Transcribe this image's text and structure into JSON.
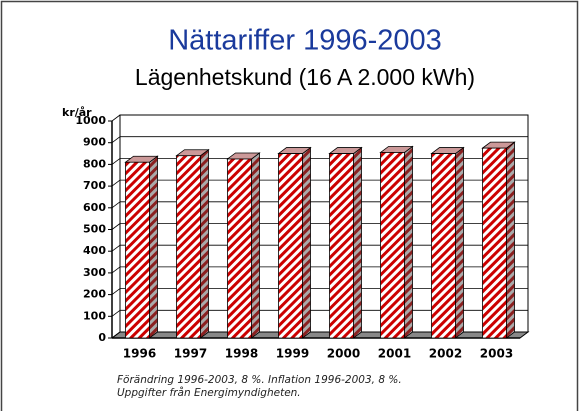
{
  "chart_data": {
    "type": "bar",
    "title": "Nättariffer 1996-2003",
    "subtitle": "Lägenhetskund (16 A 2.000 kWh)",
    "y_label": "kr/år",
    "categories": [
      "1996",
      "1997",
      "1998",
      "1999",
      "2000",
      "2001",
      "2002",
      "2003"
    ],
    "values": [
      810,
      840,
      825,
      850,
      850,
      855,
      850,
      875
    ],
    "color": "#cc0000",
    "ylim": [
      0,
      1000
    ],
    "yticks": [
      0,
      100,
      200,
      300,
      400,
      500,
      600,
      700,
      800,
      900,
      1000
    ],
    "grid": true,
    "notes": [
      "Förändring 1996-2003, 8 %. Inflation 1996-2003, 8 %.",
      "Uppgifter från Energimyndigheten."
    ]
  }
}
